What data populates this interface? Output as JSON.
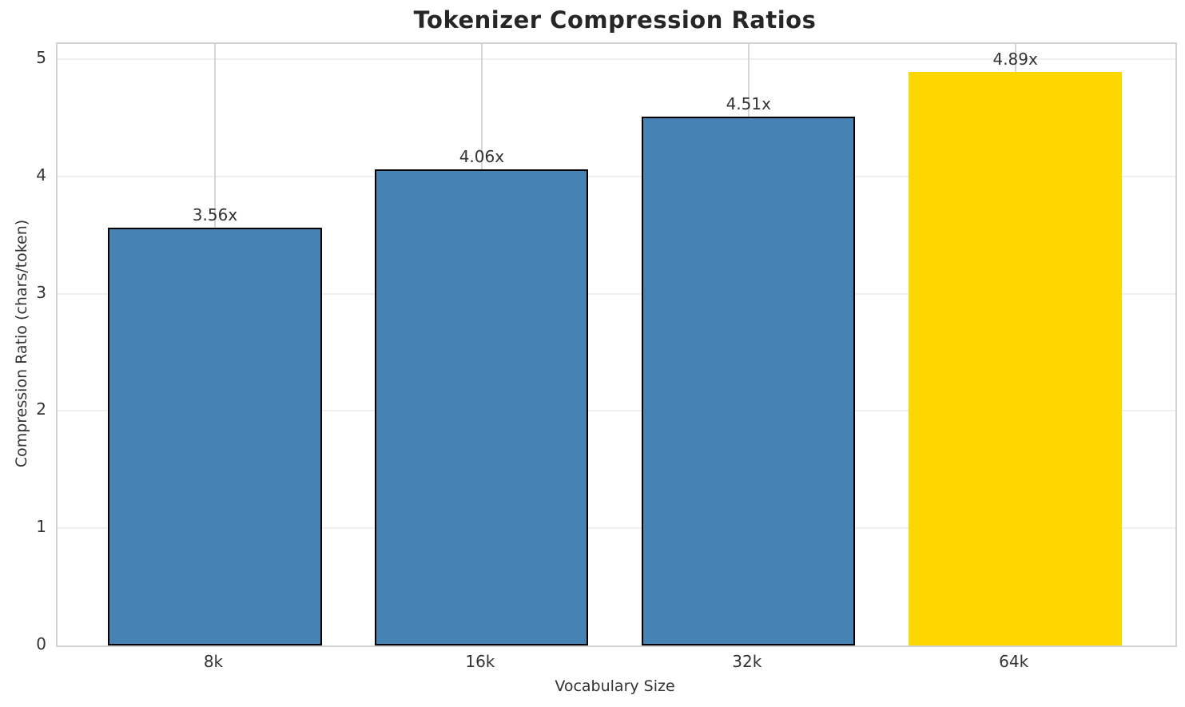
{
  "chart_data": {
    "type": "bar",
    "title": "Tokenizer Compression Ratios",
    "xlabel": "Vocabulary Size",
    "ylabel": "Compression Ratio (chars/token)",
    "categories": [
      "8k",
      "16k",
      "32k",
      "64k"
    ],
    "values": [
      3.56,
      4.06,
      4.51,
      4.89
    ],
    "value_labels": [
      "3.56x",
      "4.06x",
      "4.51x",
      "4.89x"
    ],
    "bar_colors": [
      "#4682b4",
      "#4682b4",
      "#4682b4",
      "#ffd700"
    ],
    "bar_edge_colors": [
      "#000000",
      "#000000",
      "#000000",
      "none"
    ],
    "yticks": [
      0,
      1,
      2,
      3,
      4,
      5
    ],
    "ytick_labels": [
      "0",
      "1",
      "2",
      "3",
      "4",
      "5"
    ],
    "ylim": [
      0,
      5.13
    ],
    "xlim": [
      -0.59,
      3.6
    ],
    "bar_width": 0.8,
    "grid": "both",
    "legend": "none",
    "colors": {
      "grid_horizontal": "#efefef",
      "grid_vertical": "#d7d7d7",
      "spine": "#d2d2d2",
      "text": "#333333",
      "title_text": "#262626"
    }
  }
}
